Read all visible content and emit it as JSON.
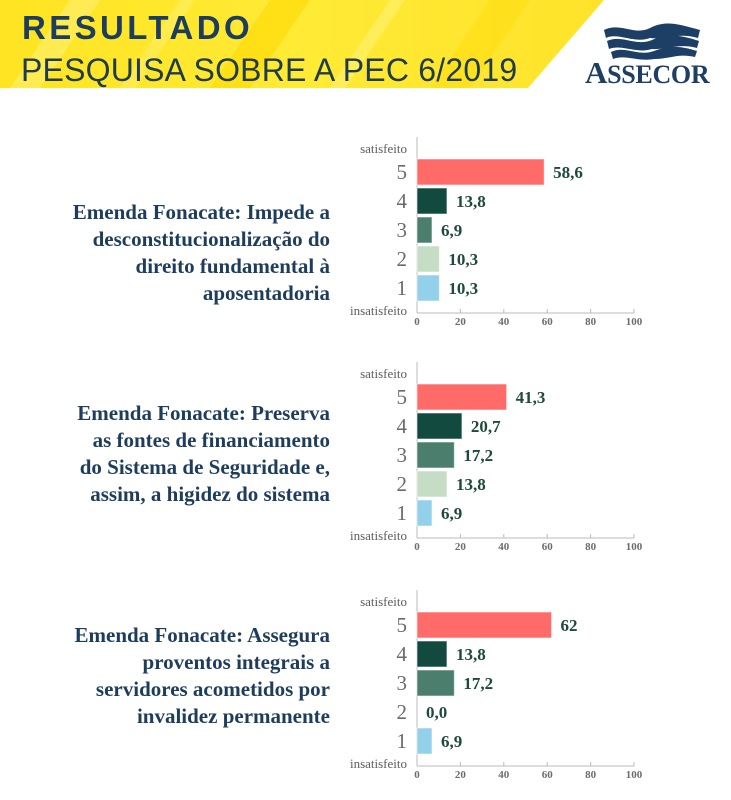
{
  "header": {
    "title": "RESULTADO",
    "subtitle": "PESQUISA SOBRE A PEC 6/2019",
    "logo_icon": "waves-icon",
    "logo_text_initial": "A",
    "logo_text_rest": "SSECOR",
    "banner_color": "#FFE82A",
    "text_color": "#1C3D5E"
  },
  "colors": {
    "bar_colors": [
      "#FF6B68",
      "#124A40",
      "#4B7E6D",
      "#C4DDC4",
      "#93D0EA"
    ],
    "value_label": "#1D4A3D",
    "title_text": "#1E3D5C",
    "axis": "#BBBBBB"
  },
  "chart_data": [
    {
      "type": "bar",
      "orientation": "horizontal",
      "title": "Emenda Fonacate: Impede a desconstitucionalização do direito fundamental à aposentadoria",
      "title_lines": [
        "Emenda Fonacate: Impede a",
        "desconstitucionalização do",
        "direito fundamental à",
        "aposentadoria"
      ],
      "categories": [
        "5",
        "4",
        "3",
        "2",
        "1"
      ],
      "values": [
        58.6,
        13.8,
        6.9,
        10.3,
        10.3
      ],
      "value_labels": [
        "58,6",
        "13,8",
        "6,9",
        "10,3",
        "10,3"
      ],
      "top_label": "satisfeito",
      "bottom_label": "insatisfeito",
      "xlim": [
        0,
        100
      ],
      "xticks": [
        0,
        20,
        40,
        60,
        80,
        100
      ],
      "xtick_labels": [
        "0",
        "20",
        "40",
        "60",
        "80",
        "100"
      ],
      "grid": false
    },
    {
      "type": "bar",
      "orientation": "horizontal",
      "title": "Emenda Fonacate: Preserva as fontes de financiamento do Sistema de Seguridade e, assim, a higidez do sistema",
      "title_lines": [
        "Emenda Fonacate: Preserva",
        "as fontes de financiamento",
        "do Sistema de Seguridade e,",
        "assim, a higidez do sistema"
      ],
      "categories": [
        "5",
        "4",
        "3",
        "2",
        "1"
      ],
      "values": [
        41.3,
        20.7,
        17.2,
        13.8,
        6.9
      ],
      "value_labels": [
        "41,3",
        "20,7",
        "17,2",
        "13,8",
        "6,9"
      ],
      "top_label": "satisfeito",
      "bottom_label": "insatisfeito",
      "xlim": [
        0,
        100
      ],
      "xticks": [
        0,
        20,
        40,
        60,
        80,
        100
      ],
      "xtick_labels": [
        "0",
        "20",
        "40",
        "60",
        "80",
        "100"
      ],
      "grid": false
    },
    {
      "type": "bar",
      "orientation": "horizontal",
      "title": "Emenda Fonacate: Assegura proventos integrais a servidores acometidos por invalidez permanente",
      "title_lines": [
        "Emenda Fonacate: Assegura",
        "proventos integrais a",
        "servidores acometidos por",
        "invalidez permanente"
      ],
      "categories": [
        "5",
        "4",
        "3",
        "2",
        "1"
      ],
      "values": [
        62,
        13.8,
        17.2,
        0.0,
        6.9
      ],
      "value_labels": [
        "62",
        "13,8",
        "17,2",
        "0,0",
        "6,9"
      ],
      "top_label": "satisfeito",
      "bottom_label": "insatisfeito",
      "xlim": [
        0,
        100
      ],
      "xticks": [
        0,
        20,
        40,
        60,
        80,
        100
      ],
      "xtick_labels": [
        "0",
        "20",
        "40",
        "60",
        "80",
        "100"
      ],
      "grid": false
    }
  ]
}
